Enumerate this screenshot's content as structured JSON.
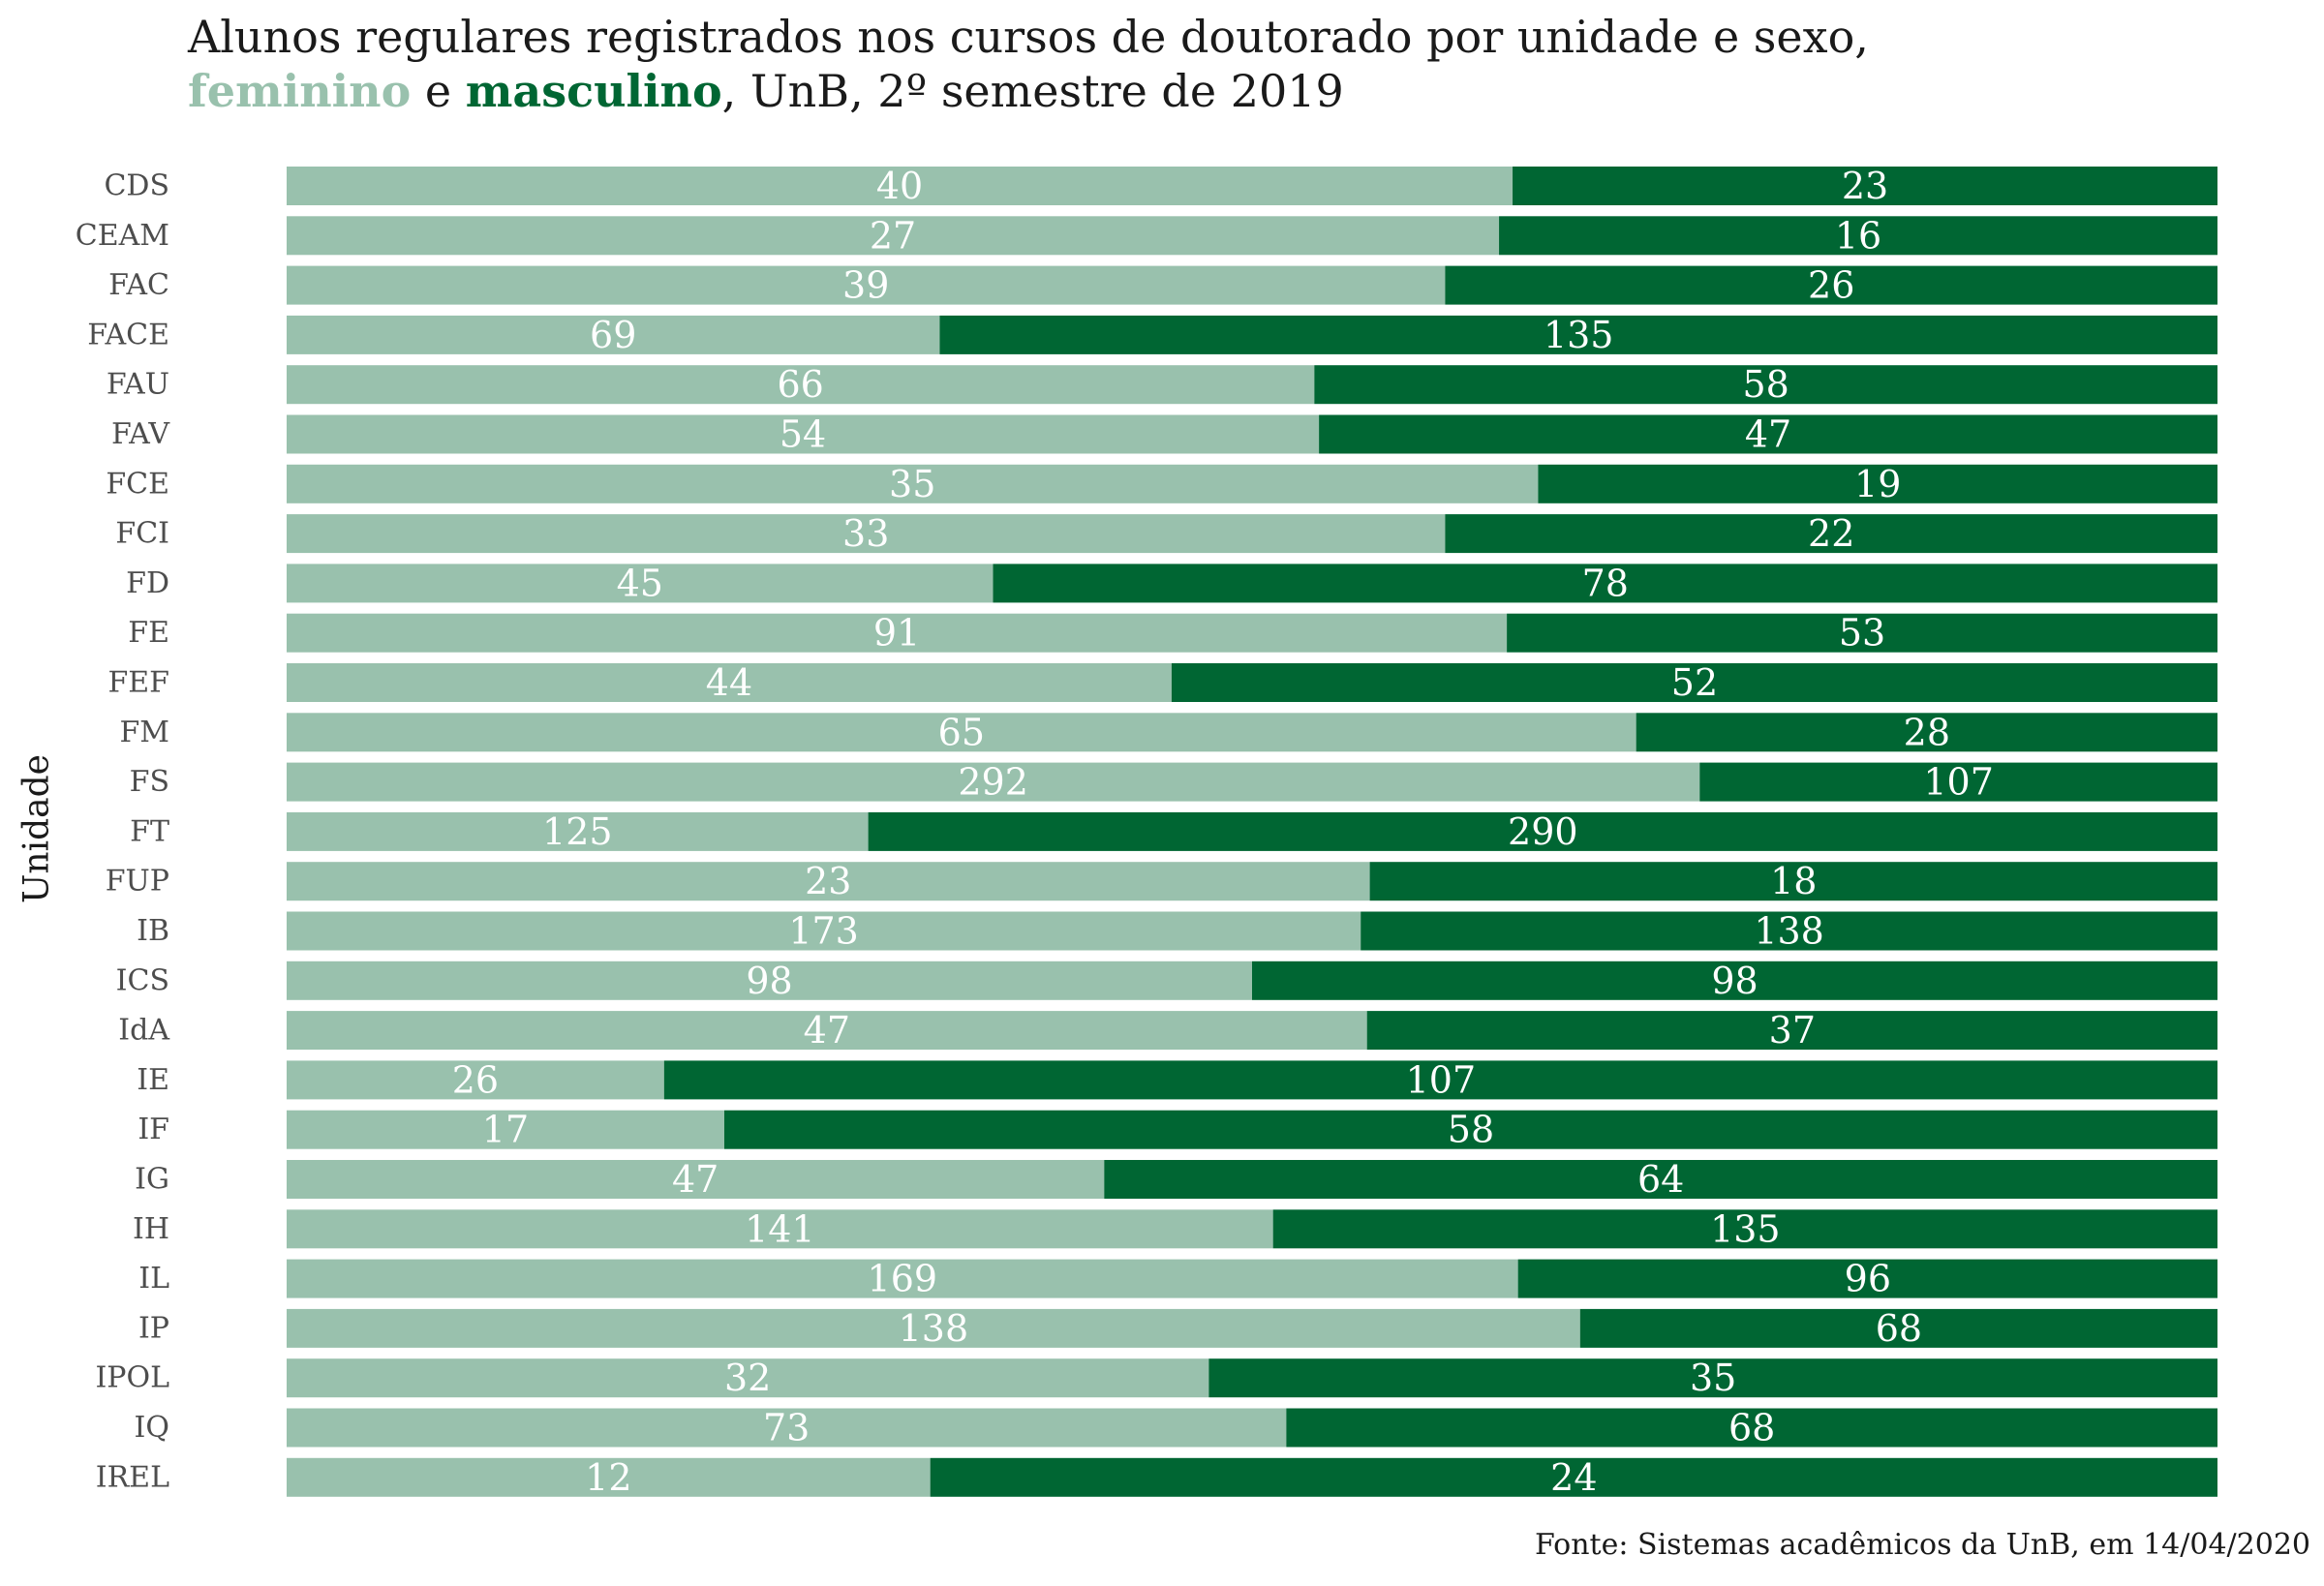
{
  "title": {
    "line1": "Alunos regulares registrados nos cursos de doutorado por unidade e sexo,",
    "fem_word": "feminino",
    "connector": " e ",
    "masc_word": "masculino",
    "rest": ", UnB, 2º semestre de 2019"
  },
  "source": "Fonte: Sistemas acadêmicos da UnB, em 14/04/2020",
  "chart_data": {
    "type": "bar",
    "orientation": "horizontal",
    "stacked": "percent",
    "ylabel": "Unidade",
    "xlabel": "",
    "grid": false,
    "legend": "in-title",
    "colors": {
      "feminino": "#99c1ad",
      "masculino": "#006633",
      "label": "#ffffff"
    },
    "categories": [
      "CDS",
      "CEAM",
      "FAC",
      "FACE",
      "FAU",
      "FAV",
      "FCE",
      "FCI",
      "FD",
      "FE",
      "FEF",
      "FM",
      "FS",
      "FT",
      "FUP",
      "IB",
      "ICS",
      "IdA",
      "IE",
      "IF",
      "IG",
      "IH",
      "IL",
      "IP",
      "IPOL",
      "IQ",
      "IREL"
    ],
    "series": [
      {
        "name": "feminino",
        "values": [
          40,
          27,
          39,
          69,
          66,
          54,
          35,
          33,
          45,
          91,
          44,
          65,
          292,
          125,
          23,
          173,
          98,
          47,
          26,
          17,
          47,
          141,
          169,
          138,
          32,
          73,
          12
        ]
      },
      {
        "name": "masculino",
        "values": [
          23,
          16,
          26,
          135,
          58,
          47,
          19,
          22,
          78,
          53,
          52,
          28,
          107,
          290,
          18,
          138,
          98,
          37,
          107,
          58,
          64,
          135,
          96,
          68,
          35,
          68,
          24
        ]
      }
    ]
  }
}
